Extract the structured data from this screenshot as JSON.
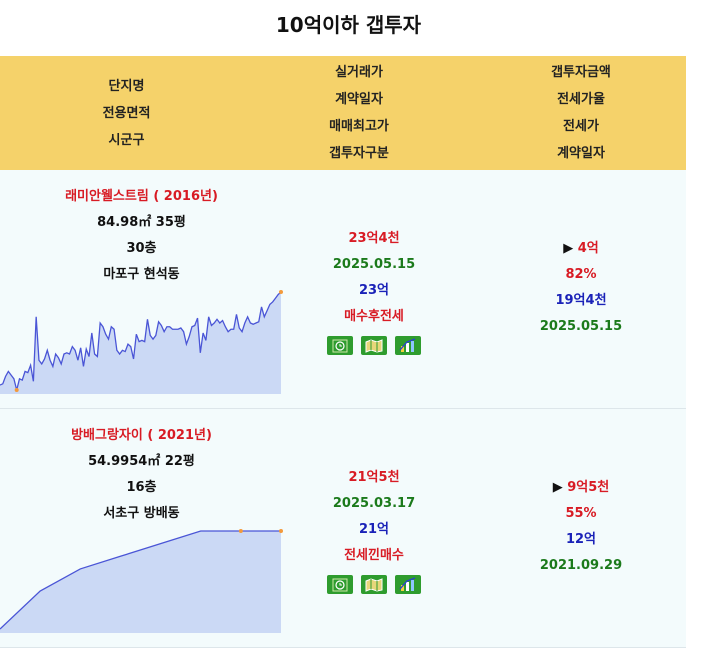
{
  "title": "10억이하 갭투자",
  "header": {
    "col1": [
      "단지명",
      "전용면적",
      "시군구"
    ],
    "col2": [
      "실거래가",
      "계약일자",
      "매매최고가",
      "갭투자구분"
    ],
    "col3": [
      "갭투자금액",
      "전세가율",
      "전세가",
      "계약일자"
    ]
  },
  "rows": [
    {
      "name": "래미안웰스트림 ( 2016년)",
      "area": "84.98㎡ 35평",
      "floor": "30층",
      "location": "마포구 현석동",
      "price": "23억4천",
      "contract_date": "2025.05.15",
      "max_price": "23억",
      "gap_type": "매수후전세",
      "gap_amount": "▶ 4억",
      "jeonse_ratio": "82%",
      "jeonse_price": "19억4천",
      "jeonse_date": "2025.05.15",
      "sparkline": [
        5,
        6,
        12,
        16,
        13,
        10,
        1,
        10,
        9,
        16,
        15,
        21,
        8,
        60,
        25,
        22,
        26,
        33,
        25,
        20,
        30,
        27,
        22,
        30,
        31,
        30,
        36,
        33,
        25,
        35,
        20,
        34,
        28,
        47,
        30,
        28,
        55,
        52,
        46,
        42,
        52,
        50,
        33,
        30,
        33,
        32,
        38,
        36,
        26,
        46,
        40,
        41,
        40,
        58,
        45,
        42,
        45,
        56,
        53,
        48,
        52,
        52,
        50,
        50,
        50,
        51,
        48,
        38,
        44,
        52,
        53,
        59,
        31,
        47,
        41,
        60,
        53,
        55,
        58,
        55,
        57,
        52,
        48,
        50,
        50,
        62,
        51,
        48,
        55,
        60,
        55,
        54,
        55,
        56,
        68,
        60,
        65,
        70,
        72,
        75,
        78,
        80
      ],
      "sparkline_highlight": [
        6,
        101
      ]
    },
    {
      "name": "방배그랑자이 ( 2021년)",
      "area": "54.9954㎡ 22평",
      "floor": "16층",
      "location": "서초구 방배동",
      "price": "21억5천",
      "contract_date": "2025.03.17",
      "max_price": "21억",
      "gap_type": "전세낀매수",
      "gap_amount": "▶ 9억5천",
      "jeonse_ratio": "55%",
      "jeonse_price": "12억",
      "jeonse_date": "2021.09.29",
      "sparkline": [
        0,
        12,
        19,
        23,
        27,
        31,
        31,
        31
      ],
      "sparkline_highlight": [
        6,
        7
      ]
    }
  ],
  "icons": [
    "clock-icon",
    "map-icon",
    "chart-icon"
  ],
  "colors": {
    "header_bg": "#f5d26a",
    "row_bg": "#f3fbfc",
    "red": "#d81b24",
    "green": "#1b7a1b",
    "blue": "#1a22b8",
    "icon_bg": "#2e9c2e",
    "line": "#4a55d6",
    "fill": "#cbd9f5",
    "highlight": "#f39a3c"
  }
}
